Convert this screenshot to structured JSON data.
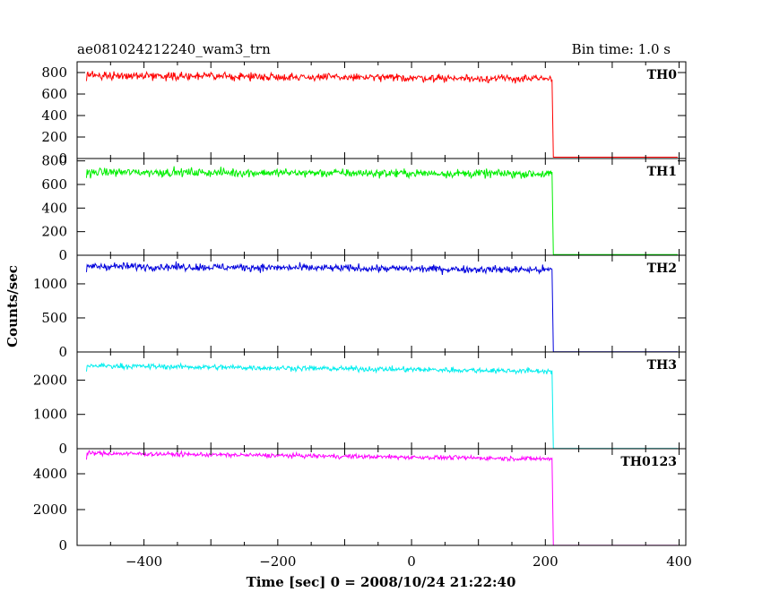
{
  "chart_data": {
    "type": "line",
    "title": "ae081024212240_wam3_trn",
    "bin_time": "Bin time: 1.0 s",
    "xlabel": "Time [sec] 0 = 2008/10/24 21:22:40",
    "ylabel": "Counts/sec",
    "xlim": [
      -500,
      410
    ],
    "x_ticks": [
      -400,
      -200,
      0,
      200,
      400
    ],
    "panels": [
      {
        "name": "TH0",
        "color": "#ff0000",
        "ylim": [
          0,
          900
        ],
        "y_ticks": [
          0,
          200,
          400,
          600,
          800
        ],
        "level_start": 775,
        "level_end": 740,
        "noise": 55,
        "drop_time": 210,
        "post_level": 12
      },
      {
        "name": "TH1",
        "color": "#00ee00",
        "ylim": [
          0,
          820
        ],
        "y_ticks": [
          0,
          200,
          400,
          600,
          800
        ],
        "level_start": 705,
        "level_end": 690,
        "noise": 55,
        "drop_time": 210,
        "post_level": 6
      },
      {
        "name": "TH2",
        "color": "#0000dd",
        "ylim": [
          0,
          1420
        ],
        "y_ticks": [
          0,
          500,
          1000
        ],
        "level_start": 1260,
        "level_end": 1205,
        "noise": 85,
        "drop_time": 210,
        "post_level": 4
      },
      {
        "name": "TH3",
        "color": "#00eeee",
        "ylim": [
          0,
          2820
        ],
        "y_ticks": [
          0,
          1000,
          2000
        ],
        "level_start": 2420,
        "level_end": 2260,
        "noise": 120,
        "drop_time": 210,
        "post_level": 5
      },
      {
        "name": "TH0123",
        "color": "#ff00ff",
        "ylim": [
          0,
          5400
        ],
        "y_ticks": [
          0,
          2000,
          4000
        ],
        "level_start": 5150,
        "level_end": 4830,
        "noise": 190,
        "drop_time": 210,
        "post_level": 8
      }
    ]
  }
}
